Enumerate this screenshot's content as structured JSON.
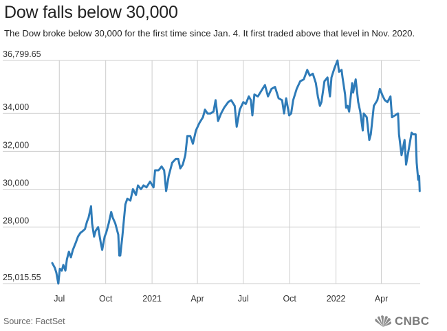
{
  "header": {
    "title": "Dow falls below 30,000",
    "subtitle": "The Dow broke below 30,000 for the first time since Jan. 4. It first traded above that level in Nov. 2020."
  },
  "footer": {
    "source": "Source: FactSet",
    "logo_text": "CNBC",
    "logo_icon": "nbc-peacock-icon"
  },
  "colors": {
    "line": "#2e7bb8",
    "grid": "#cccccc",
    "text": "#222222"
  },
  "chart_data": {
    "type": "line",
    "title": "Dow falls below 30,000",
    "xlabel": "",
    "ylabel": "",
    "ylim": [
      25015.55,
      36799.65
    ],
    "xlim": [
      "2020-06-17",
      "2022-06-17"
    ],
    "grid": true,
    "y_ticks": [
      {
        "value": 36799.65,
        "label": "36,799.65"
      },
      {
        "value": 34000,
        "label": "34,000"
      },
      {
        "value": 32000,
        "label": "32,000"
      },
      {
        "value": 30000,
        "label": "30,000"
      },
      {
        "value": 28000,
        "label": "28,000"
      },
      {
        "value": 25015.55,
        "label": "25,015.55"
      }
    ],
    "x_ticks": [
      {
        "date": "2020-07-01",
        "label": "Jul"
      },
      {
        "date": "2020-10-01",
        "label": "Oct"
      },
      {
        "date": "2021-01-01",
        "label": "2021"
      },
      {
        "date": "2021-04-01",
        "label": "Apr"
      },
      {
        "date": "2021-07-01",
        "label": "Jul"
      },
      {
        "date": "2021-10-01",
        "label": "Oct"
      },
      {
        "date": "2022-01-01",
        "label": "2022"
      },
      {
        "date": "2022-04-01",
        "label": "Apr"
      }
    ],
    "series": [
      {
        "points": [
          [
            "2020-06-17",
            26100
          ],
          [
            "2020-06-22",
            25850
          ],
          [
            "2020-06-25",
            25600
          ],
          [
            "2020-06-29",
            25015.55
          ],
          [
            "2020-07-02",
            25800
          ],
          [
            "2020-07-06",
            25700
          ],
          [
            "2020-07-09",
            26000
          ],
          [
            "2020-07-13",
            25700
          ],
          [
            "2020-07-16",
            26300
          ],
          [
            "2020-07-20",
            26700
          ],
          [
            "2020-07-24",
            26400
          ],
          [
            "2020-07-28",
            26800
          ],
          [
            "2020-08-03",
            27200
          ],
          [
            "2020-08-07",
            27500
          ],
          [
            "2020-08-12",
            27700
          ],
          [
            "2020-08-17",
            27800
          ],
          [
            "2020-08-21",
            27900
          ],
          [
            "2020-08-25",
            28300
          ],
          [
            "2020-08-28",
            28500
          ],
          [
            "2020-09-02",
            29100
          ],
          [
            "2020-09-04",
            28200
          ],
          [
            "2020-09-08",
            27500
          ],
          [
            "2020-09-11",
            27800
          ],
          [
            "2020-09-16",
            28000
          ],
          [
            "2020-09-21",
            27200
          ],
          [
            "2020-09-24",
            26800
          ],
          [
            "2020-09-29",
            27500
          ],
          [
            "2020-10-02",
            27700
          ],
          [
            "2020-10-07",
            28200
          ],
          [
            "2020-10-12",
            28800
          ],
          [
            "2020-10-15",
            28500
          ],
          [
            "2020-10-20",
            28200
          ],
          [
            "2020-10-26",
            27600
          ],
          [
            "2020-10-28",
            26500
          ],
          [
            "2020-10-30",
            26500
          ],
          [
            "2020-11-03",
            27500
          ],
          [
            "2020-11-09",
            29200
          ],
          [
            "2020-11-13",
            29500
          ],
          [
            "2020-11-19",
            29400
          ],
          [
            "2020-11-24",
            30000
          ],
          [
            "2020-11-30",
            29700
          ],
          [
            "2020-12-04",
            30200
          ],
          [
            "2020-12-10",
            30000
          ],
          [
            "2020-12-15",
            30200
          ],
          [
            "2020-12-21",
            30100
          ],
          [
            "2020-12-28",
            30400
          ],
          [
            "2021-01-04",
            30100
          ],
          [
            "2021-01-07",
            31000
          ],
          [
            "2021-01-14",
            31000
          ],
          [
            "2021-01-20",
            31200
          ],
          [
            "2021-01-25",
            31000
          ],
          [
            "2021-01-29",
            29900
          ],
          [
            "2021-02-03",
            30700
          ],
          [
            "2021-02-10",
            31400
          ],
          [
            "2021-02-17",
            31600
          ],
          [
            "2021-02-22",
            31600
          ],
          [
            "2021-02-26",
            31100
          ],
          [
            "2021-03-03",
            31300
          ],
          [
            "2021-03-08",
            31800
          ],
          [
            "2021-03-12",
            32800
          ],
          [
            "2021-03-18",
            32800
          ],
          [
            "2021-03-23",
            32400
          ],
          [
            "2021-03-29",
            33100
          ],
          [
            "2021-04-05",
            33500
          ],
          [
            "2021-04-12",
            33800
          ],
          [
            "2021-04-16",
            34200
          ],
          [
            "2021-04-21",
            34000
          ],
          [
            "2021-04-27",
            34000
          ],
          [
            "2021-05-03",
            34100
          ],
          [
            "2021-05-07",
            34700
          ],
          [
            "2021-05-12",
            33600
          ],
          [
            "2021-05-18",
            34000
          ],
          [
            "2021-05-24",
            34300
          ],
          [
            "2021-06-01",
            34600
          ],
          [
            "2021-06-07",
            34700
          ],
          [
            "2021-06-14",
            34400
          ],
          [
            "2021-06-18",
            33300
          ],
          [
            "2021-06-24",
            34200
          ],
          [
            "2021-07-01",
            34600
          ],
          [
            "2021-07-06",
            34500
          ],
          [
            "2021-07-12",
            34900
          ],
          [
            "2021-07-16",
            34700
          ],
          [
            "2021-07-19",
            33900
          ],
          [
            "2021-07-23",
            35000
          ],
          [
            "2021-07-30",
            34900
          ],
          [
            "2021-08-06",
            35200
          ],
          [
            "2021-08-13",
            35500
          ],
          [
            "2021-08-19",
            34900
          ],
          [
            "2021-08-26",
            35300
          ],
          [
            "2021-09-02",
            35400
          ],
          [
            "2021-09-09",
            34800
          ],
          [
            "2021-09-16",
            34700
          ],
          [
            "2021-09-20",
            34000
          ],
          [
            "2021-09-24",
            34800
          ],
          [
            "2021-09-30",
            33900
          ],
          [
            "2021-10-04",
            34000
          ],
          [
            "2021-10-08",
            34700
          ],
          [
            "2021-10-15",
            35300
          ],
          [
            "2021-10-22",
            35700
          ],
          [
            "2021-10-29",
            35800
          ],
          [
            "2021-11-05",
            36300
          ],
          [
            "2021-11-10",
            36000
          ],
          [
            "2021-11-16",
            36100
          ],
          [
            "2021-11-22",
            35600
          ],
          [
            "2021-11-26",
            34900
          ],
          [
            "2021-11-30",
            34400
          ],
          [
            "2021-12-03",
            34600
          ],
          [
            "2021-12-09",
            35700
          ],
          [
            "2021-12-15",
            35900
          ],
          [
            "2021-12-20",
            34900
          ],
          [
            "2021-12-23",
            35900
          ],
          [
            "2021-12-29",
            36400
          ],
          [
            "2022-01-04",
            36799.65
          ],
          [
            "2022-01-07",
            36200
          ],
          [
            "2022-01-12",
            36300
          ],
          [
            "2022-01-14",
            35900
          ],
          [
            "2022-01-19",
            35000
          ],
          [
            "2022-01-21",
            34300
          ],
          [
            "2022-01-24",
            34400
          ],
          [
            "2022-01-27",
            34100
          ],
          [
            "2022-02-02",
            35600
          ],
          [
            "2022-02-04",
            35100
          ],
          [
            "2022-02-09",
            35800
          ],
          [
            "2022-02-14",
            34600
          ],
          [
            "2022-02-18",
            34100
          ],
          [
            "2022-02-23",
            33100
          ],
          [
            "2022-02-25",
            34000
          ],
          [
            "2022-03-03",
            33800
          ],
          [
            "2022-03-08",
            32600
          ],
          [
            "2022-03-11",
            32900
          ],
          [
            "2022-03-17",
            34400
          ],
          [
            "2022-03-24",
            34700
          ],
          [
            "2022-03-29",
            35300
          ],
          [
            "2022-04-04",
            34900
          ],
          [
            "2022-04-08",
            34700
          ],
          [
            "2022-04-13",
            34600
          ],
          [
            "2022-04-19",
            34900
          ],
          [
            "2022-04-22",
            33800
          ],
          [
            "2022-04-28",
            33900
          ],
          [
            "2022-05-04",
            34000
          ],
          [
            "2022-05-06",
            32900
          ],
          [
            "2022-05-11",
            31800
          ],
          [
            "2022-05-17",
            32600
          ],
          [
            "2022-05-20",
            31300
          ],
          [
            "2022-05-24",
            31900
          ],
          [
            "2022-05-31",
            32990
          ],
          [
            "2022-06-03",
            32900
          ],
          [
            "2022-06-08",
            32900
          ],
          [
            "2022-06-10",
            31400
          ],
          [
            "2022-06-13",
            30500
          ],
          [
            "2022-06-15",
            30700
          ],
          [
            "2022-06-16",
            29900
          ]
        ]
      }
    ]
  }
}
